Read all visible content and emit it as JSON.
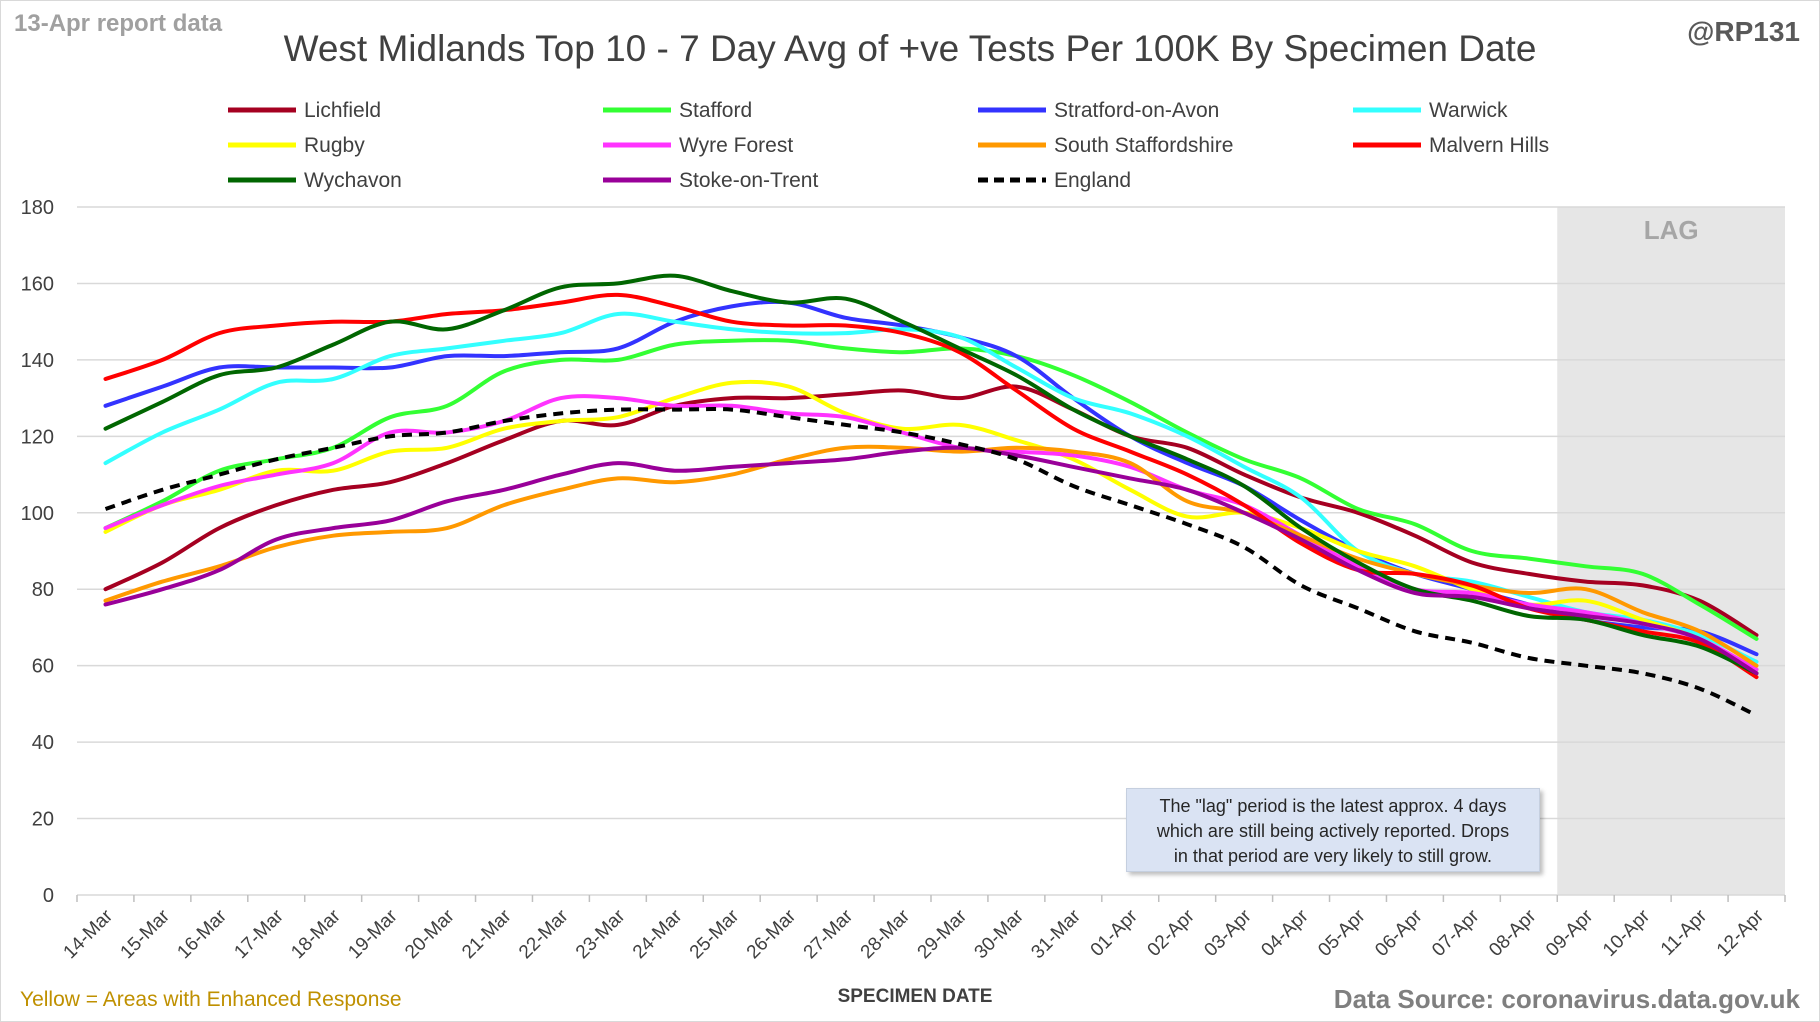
{
  "header": {
    "report_date": "13-Apr report data",
    "handle": "@RP131"
  },
  "footer": {
    "enhanced_note": "Yellow = Areas with Enhanced Response",
    "source": "Data Source: coronavirus.data.gov.uk"
  },
  "annotation": {
    "lag_label": "LAG",
    "lag_note_lines": [
      "The \"lag\" period is the latest approx. 4 days",
      "which are still being actively reported.  Drops",
      "in that period are very likely to still grow."
    ]
  },
  "colors": {
    "grid": "#d9d9d9",
    "lag_shade": "#e6e6e6",
    "axis_text": "#404040"
  },
  "chart_data": {
    "type": "line",
    "title": "West Midlands Top 10 - 7 Day Avg of +ve Tests Per 100K By Specimen Date",
    "xlabel": "SPECIMEN DATE",
    "ylabel": "",
    "ylim": [
      0,
      180
    ],
    "yticks": [
      0,
      20,
      40,
      60,
      80,
      100,
      120,
      140,
      160,
      180
    ],
    "grid": true,
    "legend_position": "top",
    "lag_start_index": 26,
    "categories": [
      "14-Mar",
      "15-Mar",
      "16-Mar",
      "17-Mar",
      "18-Mar",
      "19-Mar",
      "20-Mar",
      "21-Mar",
      "22-Mar",
      "23-Mar",
      "24-Mar",
      "25-Mar",
      "26-Mar",
      "27-Mar",
      "28-Mar",
      "29-Mar",
      "30-Mar",
      "31-Mar",
      "01-Apr",
      "02-Apr",
      "03-Apr",
      "04-Apr",
      "05-Apr",
      "06-Apr",
      "07-Apr",
      "08-Apr",
      "09-Apr",
      "10-Apr",
      "11-Apr",
      "12-Apr"
    ],
    "series": [
      {
        "name": "Lichfield",
        "color": "#a50021",
        "dashed": false,
        "values": [
          80,
          87,
          96,
          102,
          106,
          108,
          113,
          119,
          124,
          123,
          128,
          130,
          130,
          131,
          132,
          130,
          133,
          127,
          120,
          117,
          110,
          104,
          100,
          94,
          87,
          84,
          82,
          81,
          77,
          68
        ]
      },
      {
        "name": "Stafford",
        "color": "#33ff33",
        "dashed": false,
        "values": [
          96,
          103,
          111,
          114,
          117,
          125,
          128,
          137,
          140,
          140,
          144,
          145,
          145,
          143,
          142,
          143,
          141,
          136,
          129,
          121,
          114,
          109,
          101,
          97,
          90,
          88,
          86,
          84,
          76,
          67
        ]
      },
      {
        "name": "Stratford-on-Avon",
        "color": "#3333ff",
        "dashed": false,
        "values": [
          128,
          133,
          138,
          138,
          138,
          138,
          141,
          141,
          142,
          143,
          150,
          154,
          155,
          151,
          149,
          146,
          141,
          130,
          120,
          113,
          107,
          98,
          90,
          84,
          80,
          76,
          72,
          70,
          69,
          63
        ]
      },
      {
        "name": "Warwick",
        "color": "#33ffff",
        "dashed": false,
        "values": [
          113,
          121,
          127,
          134,
          135,
          141,
          143,
          145,
          147,
          152,
          150,
          148,
          147,
          147,
          148,
          146,
          138,
          130,
          126,
          120,
          112,
          104,
          90,
          84,
          82,
          78,
          74,
          72,
          68,
          61
        ]
      },
      {
        "name": "Rugby",
        "color": "#ffff00",
        "dashed": false,
        "values": [
          95,
          102,
          106,
          111,
          111,
          116,
          117,
          122,
          124,
          125,
          130,
          134,
          133,
          126,
          122,
          123,
          119,
          114,
          106,
          99,
          100,
          96,
          90,
          86,
          80,
          76,
          77,
          72,
          67,
          59
        ]
      },
      {
        "name": "Wyre Forest",
        "color": "#ff33ff",
        "dashed": false,
        "values": [
          96,
          102,
          107,
          110,
          113,
          121,
          121,
          124,
          130,
          130,
          128,
          128,
          126,
          125,
          121,
          117,
          116,
          115,
          112,
          106,
          102,
          94,
          86,
          80,
          79,
          76,
          74,
          71,
          67,
          59
        ]
      },
      {
        "name": "South Staffordshire",
        "color": "#ff9900",
        "dashed": false,
        "values": [
          77,
          82,
          86,
          91,
          94,
          95,
          96,
          102,
          106,
          109,
          108,
          110,
          114,
          117,
          117,
          116,
          117,
          116,
          113,
          103,
          100,
          94,
          88,
          84,
          81,
          79,
          80,
          74,
          69,
          60
        ]
      },
      {
        "name": "Malvern Hills",
        "color": "#ff0000",
        "dashed": false,
        "values": [
          135,
          140,
          147,
          149,
          150,
          150,
          152,
          153,
          155,
          157,
          154,
          150,
          149,
          149,
          147,
          142,
          132,
          122,
          116,
          110,
          102,
          92,
          85,
          84,
          81,
          75,
          72,
          69,
          66,
          57
        ]
      },
      {
        "name": "Wychavon",
        "color": "#006600",
        "dashed": false,
        "values": [
          122,
          129,
          136,
          138,
          144,
          150,
          148,
          153,
          159,
          160,
          162,
          158,
          155,
          156,
          150,
          143,
          136,
          127,
          120,
          114,
          107,
          96,
          87,
          80,
          77,
          73,
          72,
          68,
          65,
          58
        ]
      },
      {
        "name": "Stoke-on-Trent",
        "color": "#990099",
        "dashed": false,
        "values": [
          76,
          80,
          85,
          93,
          96,
          98,
          103,
          106,
          110,
          113,
          111,
          112,
          113,
          114,
          116,
          117,
          115,
          112,
          109,
          106,
          100,
          93,
          85,
          79,
          78,
          75,
          73,
          71,
          67,
          58
        ]
      },
      {
        "name": "England",
        "color": "#000000",
        "dashed": true,
        "values": [
          101,
          106,
          110,
          114,
          117,
          120,
          121,
          124,
          126,
          127,
          127,
          127,
          125,
          123,
          121,
          118,
          114,
          107,
          102,
          97,
          91,
          81,
          75,
          69,
          66,
          62,
          60,
          58,
          54,
          47
        ]
      }
    ]
  }
}
